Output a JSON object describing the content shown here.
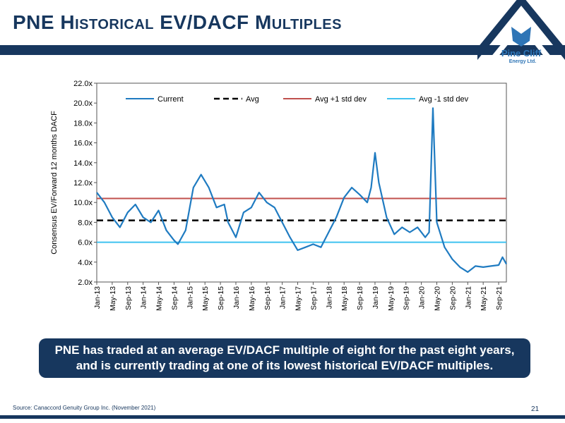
{
  "header": {
    "title": "PNE Historical EV/DACF Multiples"
  },
  "logo": {
    "name": "Pine Cliff",
    "subtitle": "Energy Ltd.",
    "colors": {
      "navy": "#17375e",
      "blue": "#2e75b6"
    }
  },
  "callout": {
    "text": "PNE has traded at an average EV/DACF multiple of eight for the past eight years, and is currently trading at one of its lowest historical EV/DACF multiples."
  },
  "footer": {
    "source": "Source: Canaccord Genuity Group Inc. (November 2021)",
    "page_number": "21"
  },
  "chart_data": {
    "type": "line",
    "ylabel": "Consensus EV/Forward 12 months DACF",
    "ylim": [
      2,
      22
    ],
    "yticks": [
      2,
      4,
      6,
      8,
      10,
      12,
      14,
      16,
      18,
      20,
      22
    ],
    "ytick_labels": [
      "2.0x",
      "4.0x",
      "6.0x",
      "8.0x",
      "10.0x",
      "12.0x",
      "14.0x",
      "16.0x",
      "18.0x",
      "20.0x",
      "22.0x"
    ],
    "x_tick_labels": [
      "Jan-13",
      "May-13",
      "Sep-13",
      "Jan-14",
      "May-14",
      "Sep-14",
      "Jan-15",
      "May-15",
      "Sep-15",
      "Jan-16",
      "May-16",
      "Sep-16",
      "Jan-17",
      "May-17",
      "Sep-17",
      "Jan-18",
      "May-18",
      "Sep-18",
      "Jan-19",
      "May-19",
      "Sep-19",
      "Jan-20",
      "May-20",
      "Sep-20",
      "Jan-21",
      "May-21",
      "Sep-21"
    ],
    "x_start": "Jan-13",
    "x_end": "Nov-21",
    "legend_position": "top",
    "series": [
      {
        "name": "Current",
        "color": "#1f7bc1",
        "style": "solid",
        "x": [
          "Jan-13",
          "Mar-13",
          "May-13",
          "Jul-13",
          "Sep-13",
          "Nov-13",
          "Jan-14",
          "Mar-14",
          "May-14",
          "Jul-14",
          "Sep-14",
          "Oct-14",
          "Dec-14",
          "Feb-15",
          "Apr-15",
          "Jun-15",
          "Aug-15",
          "Oct-15",
          "Nov-15",
          "Jan-16",
          "Mar-16",
          "May-16",
          "Jul-16",
          "Sep-16",
          "Nov-16",
          "Jan-17",
          "Mar-17",
          "May-17",
          "Jul-17",
          "Sep-17",
          "Nov-17",
          "Jan-18",
          "Mar-18",
          "May-18",
          "Jul-18",
          "Sep-18",
          "Nov-18",
          "Dec-18",
          "Jan-19",
          "Feb-19",
          "Apr-19",
          "Jun-19",
          "Aug-19",
          "Oct-19",
          "Dec-19",
          "Feb-20",
          "Mar-20",
          "Apr-20",
          "May-20",
          "Jul-20",
          "Sep-20",
          "Nov-20",
          "Jan-21",
          "Mar-21",
          "May-21",
          "Jul-21",
          "Sep-21",
          "Oct-21",
          "Nov-21"
        ],
        "values": [
          11.0,
          10.0,
          8.5,
          7.5,
          9.0,
          9.8,
          8.5,
          8.0,
          9.2,
          7.2,
          6.2,
          5.8,
          7.2,
          11.5,
          12.8,
          11.5,
          9.5,
          9.8,
          8.0,
          6.5,
          9.0,
          9.5,
          11.0,
          10.0,
          9.5,
          8.0,
          6.5,
          5.2,
          5.5,
          5.8,
          5.5,
          7.0,
          8.5,
          10.5,
          11.5,
          10.8,
          10.0,
          11.5,
          15.0,
          12.0,
          8.5,
          6.8,
          7.5,
          7.0,
          7.5,
          6.5,
          7.0,
          19.5,
          8.0,
          5.5,
          4.3,
          3.5,
          3.0,
          3.6,
          3.5,
          3.6,
          3.7,
          4.5,
          3.8
        ]
      },
      {
        "name": "Avg",
        "color": "#000000",
        "style": "dashed",
        "value": 8.2
      },
      {
        "name": "Avg +1 std dev",
        "color": "#c0504d",
        "style": "solid",
        "value": 10.4
      },
      {
        "name": "Avg -1 std dev",
        "color": "#3fc2f0",
        "style": "solid",
        "value": 6.0
      }
    ]
  }
}
